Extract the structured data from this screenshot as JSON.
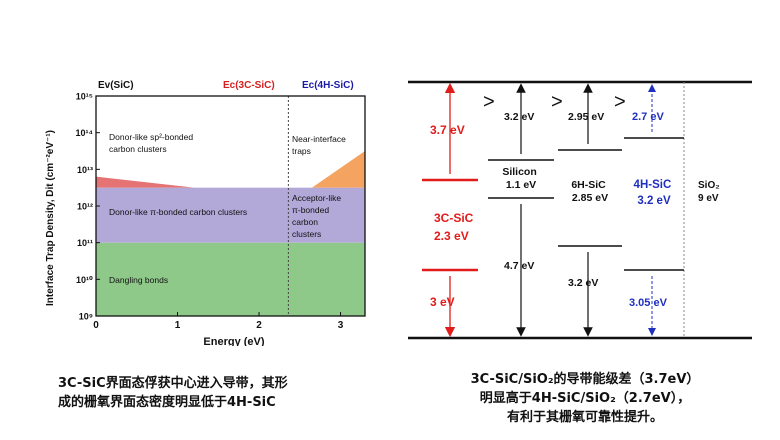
{
  "left_chart": {
    "top_labels": {
      "ev_sic": "Ev(SiC)",
      "ec_3c": "Ec(3C-SiC)",
      "ec_4h": "Ec(4H-SiC)"
    },
    "colors": {
      "ec_3c": "#d42020",
      "ec_4h": "#1a1aa8",
      "donor_sp2": "#e57373",
      "acceptor": "#f4a460",
      "pi_band": "#b3a9d9",
      "dangling": "#8fc98a"
    },
    "region_labels": {
      "donor_sp2": [
        "Donor-like sp²-bonded",
        "carbon clusters"
      ],
      "near_interface": [
        "Near-interface",
        "traps"
      ],
      "donor_pi": "Donor-like π-bonded carbon clusters",
      "acceptor": [
        "Acceptor-like",
        "π-bonded",
        "carbon",
        "clusters"
      ],
      "dangling": "Dangling bonds"
    }
  },
  "chart_data": {
    "type": "area",
    "title": "",
    "xlabel": "Energy (eV)",
    "ylabel": "Interface Trap Density, Dit (cm⁻²eV⁻¹)",
    "xlim": [
      0,
      3.3
    ],
    "ylim_log10": [
      9,
      15
    ],
    "x_ticks": [
      "0",
      "1",
      "2",
      "3"
    ],
    "y_ticks": [
      "10⁹",
      "10¹⁰",
      "10¹¹",
      "10¹²",
      "10¹³",
      "10¹⁴",
      "10¹⁵"
    ],
    "y_tick_exponents": [
      9,
      10,
      11,
      12,
      13,
      14,
      15
    ],
    "divider_x": 2.36,
    "series": [
      {
        "name": "Dangling bonds",
        "x": [
          0,
          3.3
        ],
        "log10_upper": [
          11,
          11
        ]
      },
      {
        "name": "Donor-like π-bonded carbon clusters",
        "x": [
          0,
          3.3
        ],
        "log10_upper": [
          12.5,
          12.5
        ]
      },
      {
        "name": "Donor-like sp²-bonded carbon clusters",
        "x": [
          0,
          1.2
        ],
        "log10_upper": [
          12.8,
          12.5
        ]
      },
      {
        "name": "Acceptor-like π-bonded carbon clusters",
        "x": [
          2.65,
          3.3
        ],
        "log10_upper": [
          12.5,
          13.5
        ]
      }
    ]
  },
  "band_diagram": {
    "arrows_gt": [
      ">",
      ">",
      ">"
    ],
    "labels": {
      "offset_3c": "3.7 eV",
      "offset_si": "3.2 eV",
      "offset_6h": "2.95 eV",
      "offset_4h": "2.7 eV",
      "silicon": [
        "Silicon",
        "1.1 eV"
      ],
      "sixh": [
        "6H-SiC",
        "2.85 eV"
      ],
      "fourh": [
        "4H-SiC",
        "3.2 eV"
      ],
      "sio2": [
        "SiO₂",
        "9 eV"
      ],
      "threec": [
        "3C-SiC",
        "2.3 eV"
      ],
      "vb_si": "4.7 eV",
      "vb_6h": "3.2 eV",
      "vb_3c": "3 eV",
      "vb_4h": "3.05 eV"
    },
    "colors": {
      "red": "#e21b1b",
      "blue": "#1f2fbf",
      "black": "#111111"
    }
  },
  "captions": {
    "left": [
      "3C-SiC界面态俘获中心进入导带，其形",
      "成的栅氧界面态密度明显低于4H-SiC"
    ],
    "right": [
      "3C-SiC/SiO₂的导带能级差（3.7eV）",
      "明显高于4H-SiC/SiO₂（2.7eV），",
      "有利于其栅氧可靠性提升。"
    ]
  }
}
